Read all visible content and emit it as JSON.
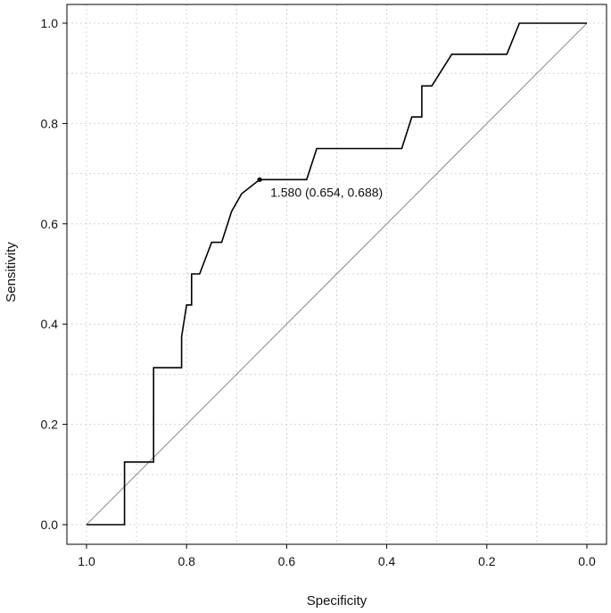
{
  "chart_data": {
    "type": "line",
    "xlabel": "Specificity",
    "ylabel": "Sensitivity",
    "x_reversed": true,
    "xlim": [
      1.0,
      0.0
    ],
    "ylim": [
      0.0,
      1.0
    ],
    "grid": true,
    "x_ticks": [
      "1.0",
      "0.8",
      "0.6",
      "0.4",
      "0.2",
      "0.0"
    ],
    "y_ticks": [
      "0.0",
      "0.2",
      "0.4",
      "0.6",
      "0.8",
      "1.0"
    ],
    "series": [
      {
        "x": [
          1.0,
          0.924,
          0.924,
          0.866,
          0.866,
          0.81,
          0.81,
          0.8,
          0.79,
          0.79,
          0.774,
          0.75,
          0.73,
          0.71,
          0.69,
          0.654,
          0.56,
          0.54,
          0.37,
          0.35,
          0.33,
          0.33,
          0.31,
          0.27,
          0.16,
          0.135,
          0.0
        ],
        "y": [
          0.0,
          0.0,
          0.125,
          0.125,
          0.313,
          0.313,
          0.375,
          0.438,
          0.438,
          0.5,
          0.5,
          0.563,
          0.563,
          0.625,
          0.66,
          0.688,
          0.688,
          0.75,
          0.75,
          0.813,
          0.813,
          0.875,
          0.875,
          0.938,
          0.938,
          1.0,
          1.0
        ],
        "color": "#000000"
      }
    ],
    "reference_line": {
      "x": [
        1.0,
        0.0
      ],
      "y": [
        0.0,
        1.0
      ],
      "color": "#888888"
    },
    "annotation": {
      "text": "1.580 (0.654, 0.688)",
      "point": {
        "x": 0.654,
        "y": 0.688
      }
    }
  }
}
